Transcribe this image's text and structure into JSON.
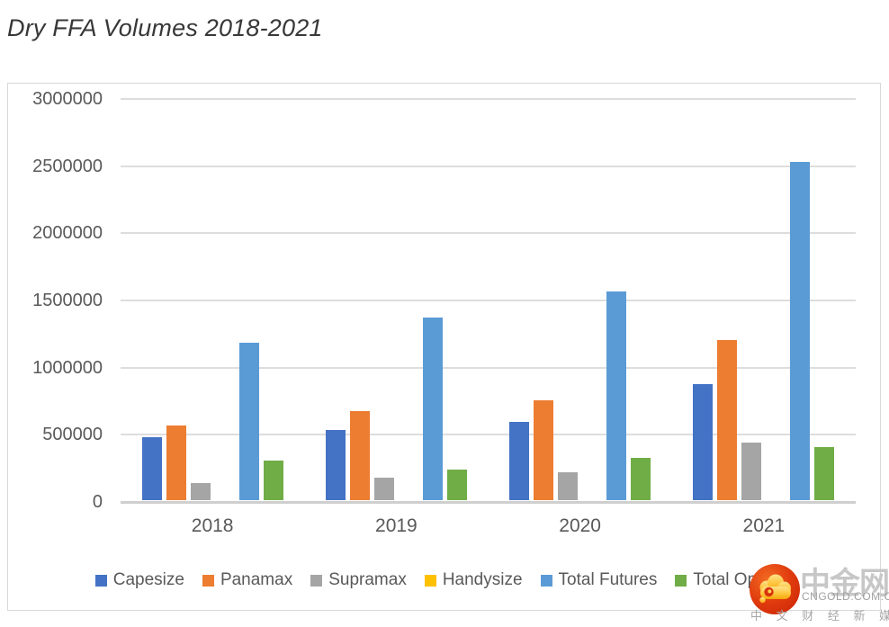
{
  "title": "Dry FFA Volumes 2018-2021",
  "chart_data": {
    "type": "bar",
    "title": "Dry FFA Volumes 2018-2021",
    "categories": [
      "2018",
      "2019",
      "2020",
      "2021"
    ],
    "series": [
      {
        "name": "Capesize",
        "color": "#4472C4",
        "values": [
          470000,
          525000,
          585000,
          865000
        ]
      },
      {
        "name": "Panamax",
        "color": "#ED7D31",
        "values": [
          555000,
          660000,
          740000,
          1195000
        ]
      },
      {
        "name": "Supramax",
        "color": "#A5A5A5",
        "values": [
          125000,
          165000,
          210000,
          430000
        ]
      },
      {
        "name": "Handysize",
        "color": "#FFC000",
        "values": [
          0,
          0,
          0,
          0
        ]
      },
      {
        "name": "Total Futures",
        "color": "#5B9BD5",
        "values": [
          1175000,
          1360000,
          1555000,
          2520000
        ]
      },
      {
        "name": "Total Options",
        "color": "#70AD47",
        "values": [
          295000,
          230000,
          315000,
          395000
        ]
      }
    ],
    "xlabel": "",
    "ylabel": "",
    "ylim": [
      0,
      3000000
    ],
    "ytick_interval": 500000,
    "yticks": [
      "0",
      "500000",
      "1000000",
      "1500000",
      "2000000",
      "2500000",
      "3000000"
    ],
    "grid": "horizontal",
    "legend_position": "bottom"
  },
  "watermark": {
    "brand": "中金网",
    "url": "CNGOLD.COM.CN",
    "subtitle": "中 文 财 经 新 媒 体",
    "logo_red": "#d93210",
    "logo_yellow": "#ffc53d"
  }
}
